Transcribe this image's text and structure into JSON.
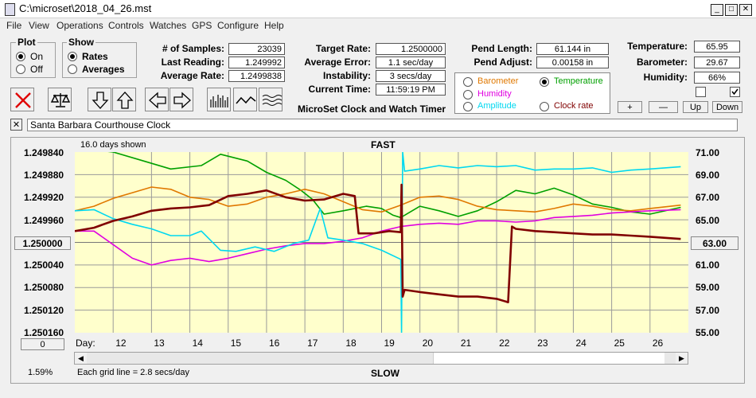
{
  "window": {
    "title": "C:\\microset\\2018_04_26.mst",
    "minimize": "_",
    "maximize": "□",
    "close": "✕"
  },
  "menu": [
    "File",
    "View",
    "Operations",
    "Controls",
    "Watches",
    "GPS",
    "Configure",
    "Help"
  ],
  "plot_group": {
    "title": "Plot",
    "options": [
      "On",
      "Off"
    ],
    "selected": "On"
  },
  "show_group": {
    "title": "Show",
    "options": [
      "Rates",
      "Averages"
    ],
    "selected": "Rates"
  },
  "stats": {
    "samples_label": "# of Samples:",
    "samples": "23039",
    "last_reading_label": "Last Reading:",
    "last_reading": "1.249992",
    "average_rate_label": "Average Rate:",
    "average_rate": "1.2499838",
    "target_rate_label": "Target Rate:",
    "target_rate": "1.2500000",
    "average_error_label": "Average Error:",
    "average_error": "1.1 sec/day",
    "instability_label": "Instability:",
    "instability": "3 secs/day",
    "current_time_label": "Current Time:",
    "current_time": "11:59:19 PM"
  },
  "pendulum": {
    "length_label": "Pend Length:",
    "length": "61.144 in",
    "adjust_label": "Pend Adjust:",
    "adjust": "0.00158 in"
  },
  "environment": {
    "temperature_label": "Temperature:",
    "temperature": "65.95",
    "barometer_label": "Barometer:",
    "barometer": "29.67",
    "humidity_label": "Humidity:",
    "humidity": "66%"
  },
  "series_options": {
    "items": [
      {
        "label": "Barometer",
        "color": "#e07800"
      },
      {
        "label": "Temperature",
        "color": "#00a000"
      },
      {
        "label": "Humidity",
        "color": "#e000e0"
      },
      {
        "label": "Amplitude",
        "color": "#00d8f0"
      },
      {
        "label": "Clock rate",
        "color": "#800000"
      }
    ],
    "selected": "Temperature"
  },
  "app_caption": "MicroSet Clock and Watch Timer",
  "scale_buttons": [
    "+",
    "—",
    "Up",
    "Down"
  ],
  "clock_name": "Santa Barbara Courthouse Clock",
  "clear_button": "✕",
  "chart_header": {
    "days_shown": "16.0 days shown",
    "top_label": "FAST",
    "bottom_label": "SLOW",
    "grid_note": "Each grid line = 2.8 secs/day",
    "percent": "1.59%",
    "left_reset": "1.250000",
    "right_reset": "63.00",
    "zero_button": "0",
    "day_label": "Day:"
  },
  "chart_data": {
    "type": "line",
    "xlabel": "Day",
    "x_ticks": [
      "12",
      "13",
      "14",
      "15",
      "16",
      "17",
      "18",
      "19",
      "20",
      "21",
      "22",
      "23",
      "24",
      "25",
      "26"
    ],
    "y_left_ticks": [
      "1.249840",
      "1.249880",
      "1.249920",
      "1.249960",
      "1.250000",
      "1.250040",
      "1.250080",
      "1.250120",
      "1.250160"
    ],
    "y_right_ticks": [
      "71.00",
      "69.00",
      "67.00",
      "65.00",
      "63.00",
      "61.00",
      "59.00",
      "57.00",
      "55.00"
    ],
    "xlim": [
      11,
      27
    ],
    "y_right_lim": [
      55,
      71
    ],
    "y_left_lim": [
      1.24984,
      1.25016
    ],
    "grid": true,
    "series": [
      {
        "name": "Temperature",
        "color": "#00a000",
        "axis": "right",
        "x": [
          11,
          11.5,
          12,
          12.8,
          13.5,
          14.3,
          14.8,
          15.5,
          16,
          16.5,
          16.9,
          17.2,
          17.5,
          18,
          18.6,
          19,
          19.3,
          19.5,
          20,
          20.5,
          21,
          21.5,
          22,
          22.5,
          23,
          23.5,
          24,
          24.5,
          25,
          25.5,
          26,
          26.8
        ],
        "y": [
          71.5,
          71.2,
          71,
          70.2,
          69.5,
          69.8,
          70.8,
          70.2,
          69.2,
          68.5,
          67.6,
          66.8,
          65.5,
          65.8,
          66.2,
          66,
          65.4,
          65.2,
          66.2,
          65.8,
          65.3,
          65.8,
          66.6,
          67.6,
          67.3,
          67.8,
          67.2,
          66.4,
          66.1,
          65.7,
          65.5,
          66.1
        ]
      },
      {
        "name": "Barometer",
        "color": "#e07800",
        "axis": "right",
        "x": [
          11,
          11.5,
          12,
          12.5,
          13,
          13.5,
          14,
          14.5,
          15,
          15.5,
          16,
          16.5,
          17,
          17.5,
          18,
          18.5,
          19,
          19.5,
          20,
          20.5,
          21,
          21.5,
          22,
          22.5,
          23,
          23.5,
          24,
          24.5,
          25,
          25.5,
          26,
          26.8
        ],
        "y": [
          65.8,
          66.2,
          66.9,
          67.4,
          67.9,
          67.7,
          67.0,
          66.8,
          66.2,
          66.4,
          67.0,
          67.3,
          67.7,
          67.3,
          66.6,
          65.9,
          65.7,
          66.3,
          67.0,
          67.1,
          66.8,
          66.2,
          65.9,
          65.8,
          65.7,
          66.0,
          66.4,
          66.2,
          65.9,
          65.8,
          66.0,
          66.3
        ]
      },
      {
        "name": "Humidity",
        "color": "#e000e0",
        "axis": "right",
        "x": [
          11,
          11.5,
          12,
          12.5,
          13,
          13.5,
          14,
          14.5,
          15,
          15.5,
          16,
          16.5,
          17,
          17.5,
          18,
          18.5,
          19,
          19.5,
          20,
          20.5,
          21,
          21.5,
          22,
          22.5,
          23,
          23.5,
          24,
          24.5,
          25,
          25.5,
          26,
          26.8
        ],
        "y": [
          64.0,
          64.0,
          62.8,
          61.6,
          61.0,
          61.4,
          61.6,
          61.3,
          61.6,
          62.0,
          62.4,
          62.7,
          62.9,
          62.9,
          63.1,
          63.4,
          64.0,
          64.4,
          64.6,
          64.7,
          64.6,
          64.9,
          64.9,
          64.8,
          64.9,
          65.2,
          65.3,
          65.4,
          65.6,
          65.7,
          65.8,
          65.9
        ]
      },
      {
        "name": "Amplitude",
        "color": "#00d8f0",
        "axis": "right",
        "x": [
          11,
          11.5,
          12,
          12.5,
          13,
          13.5,
          14,
          14.3,
          14.8,
          15.2,
          15.7,
          16.2,
          16.7,
          17.1,
          17.4,
          17.6,
          18,
          18.5,
          19,
          19.5,
          19.52,
          19.55,
          19.6,
          20,
          20.5,
          21,
          21.5,
          22,
          22.5,
          23,
          23.5,
          24,
          24.5,
          25,
          25.5,
          26,
          26.8
        ],
        "y": [
          65.8,
          65.9,
          65.1,
          64.6,
          64.2,
          63.6,
          63.6,
          64.0,
          62.3,
          62.2,
          62.6,
          62.2,
          62.9,
          63.2,
          66.0,
          63.4,
          63.2,
          62.9,
          62.3,
          61.5,
          55.0,
          71.0,
          69.3,
          69.5,
          69.8,
          69.6,
          69.8,
          69.7,
          69.8,
          69.4,
          69.5,
          69.5,
          69.6,
          69.2,
          69.4,
          69.5,
          69.7
        ]
      },
      {
        "name": "Clock rate",
        "color": "#800000",
        "axis": "right",
        "x": [
          11,
          11.5,
          12,
          12.5,
          13,
          13.5,
          14,
          14.5,
          15,
          15.5,
          16,
          16.5,
          17,
          17.5,
          18,
          18.3,
          18.4,
          18.8,
          19.2,
          19.5,
          19.52,
          19.55,
          19.6,
          20,
          20.5,
          21,
          21.5,
          22,
          22.3,
          22.4,
          22.5,
          23,
          23.5,
          24,
          24.5,
          25,
          25.5,
          26,
          26.8
        ],
        "y": [
          64.0,
          64.3,
          64.9,
          65.3,
          65.8,
          66.0,
          66.1,
          66.3,
          67.1,
          67.3,
          67.6,
          67.0,
          66.7,
          66.8,
          67.3,
          67.1,
          63.8,
          63.8,
          64.0,
          63.9,
          68.1,
          58.2,
          58.8,
          58.6,
          58.4,
          58.2,
          58.2,
          58.0,
          57.7,
          64.4,
          64.2,
          64.0,
          63.9,
          63.8,
          63.7,
          63.7,
          63.6,
          63.5,
          63.3
        ]
      }
    ]
  }
}
